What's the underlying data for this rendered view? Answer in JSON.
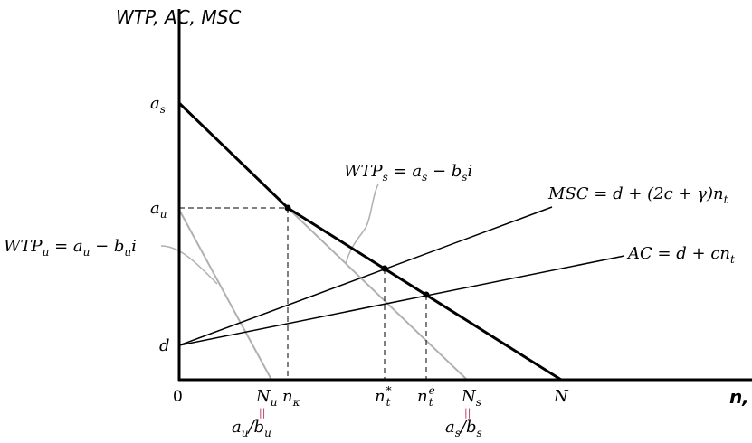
{
  "axes": {
    "y_title": "WTP, AC, MSC",
    "x_title": "n, i"
  },
  "y_labels": {
    "as": {
      "base": "a",
      "sub": "s"
    },
    "au": {
      "base": "a",
      "sub": "u"
    },
    "d": "d"
  },
  "x_labels": {
    "origin": "0",
    "Nu": {
      "base": "N",
      "sub": "u"
    },
    "nk": {
      "base": "n",
      "sub": "κ"
    },
    "nt_star": {
      "base": "n",
      "sub": "t",
      "sup": "*"
    },
    "nt_e": {
      "base": "n",
      "sub": "t",
      "sup": "e"
    },
    "Ns": {
      "base": "N",
      "sub": "s"
    },
    "N": "N",
    "equals_mark": "||",
    "au_over_bu": {
      "a": "a",
      "a_sub": "u",
      "slash": "/",
      "b": "b",
      "b_sub": "u"
    },
    "as_over_bs": {
      "a": "a",
      "a_sub": "s",
      "slash": "/",
      "b": "b",
      "b_sub": "s"
    }
  },
  "curve_labels": {
    "wtp_s": {
      "lhs": "WTP",
      "lhs_sub": "s",
      "eq": " = ",
      "a": "a",
      "a_sub": "s",
      "minus": " − ",
      "b": "b",
      "b_sub": "s",
      "var": "i"
    },
    "wtp_u": {
      "lhs": "WTP",
      "lhs_sub": "u",
      "eq": " = ",
      "a": "a",
      "a_sub": "u",
      "minus": " − ",
      "b": "b",
      "b_sub": "u",
      "var": "i"
    },
    "msc": {
      "lhs": "MSC",
      "rhs": " = d + (2c + γ)n",
      "rhs_sub": "t"
    },
    "ac": {
      "lhs": "AC",
      "rhs": " = d + cn",
      "rhs_sub": "t"
    }
  },
  "colors": {
    "thick_line": "#000000",
    "thin_line": "#000000",
    "gray_line": "#b0b0b0",
    "equals_mark": "#b03060"
  }
}
